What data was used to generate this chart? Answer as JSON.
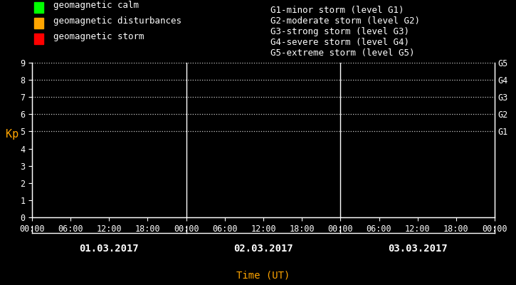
{
  "background_color": "#000000",
  "plot_bg_color": "#000000",
  "axis_color": "#ffffff",
  "text_color": "#ffffff",
  "orange_color": "#ffa500",
  "grid_color": "#ffffff",
  "divider_color": "#ffffff",
  "ylim": [
    0,
    9
  ],
  "yticks": [
    0,
    1,
    2,
    3,
    4,
    5,
    6,
    7,
    8,
    9
  ],
  "ylabel": "Kp",
  "xlabel": "Time (UT)",
  "dates": [
    "01.03.2017",
    "02.03.2017",
    "03.03.2017"
  ],
  "xtick_labels": [
    "00:00",
    "06:00",
    "12:00",
    "18:00",
    "00:00",
    "06:00",
    "12:00",
    "18:00",
    "00:00",
    "06:00",
    "12:00",
    "18:00",
    "00:00"
  ],
  "right_labels": [
    "G5",
    "G4",
    "G3",
    "G2",
    "G1"
  ],
  "right_label_yvals": [
    9,
    8,
    7,
    6,
    5
  ],
  "dotted_yvals": [
    5,
    6,
    7,
    8,
    9
  ],
  "legend_items": [
    {
      "color": "#00ff00",
      "label": "geomagnetic calm"
    },
    {
      "color": "#ffa500",
      "label": "geomagnetic disturbances"
    },
    {
      "color": "#ff0000",
      "label": "geomagnetic storm"
    }
  ],
  "right_legend_lines": [
    "G1-minor storm (level G1)",
    "G2-moderate storm (level G2)",
    "G3-strong storm (level G3)",
    "G4-severe storm (level G4)",
    "G5-extreme storm (level G5)"
  ],
  "font_size": 9,
  "tick_font_size": 8.5,
  "legend_font_size": 9,
  "date_font_size": 10
}
